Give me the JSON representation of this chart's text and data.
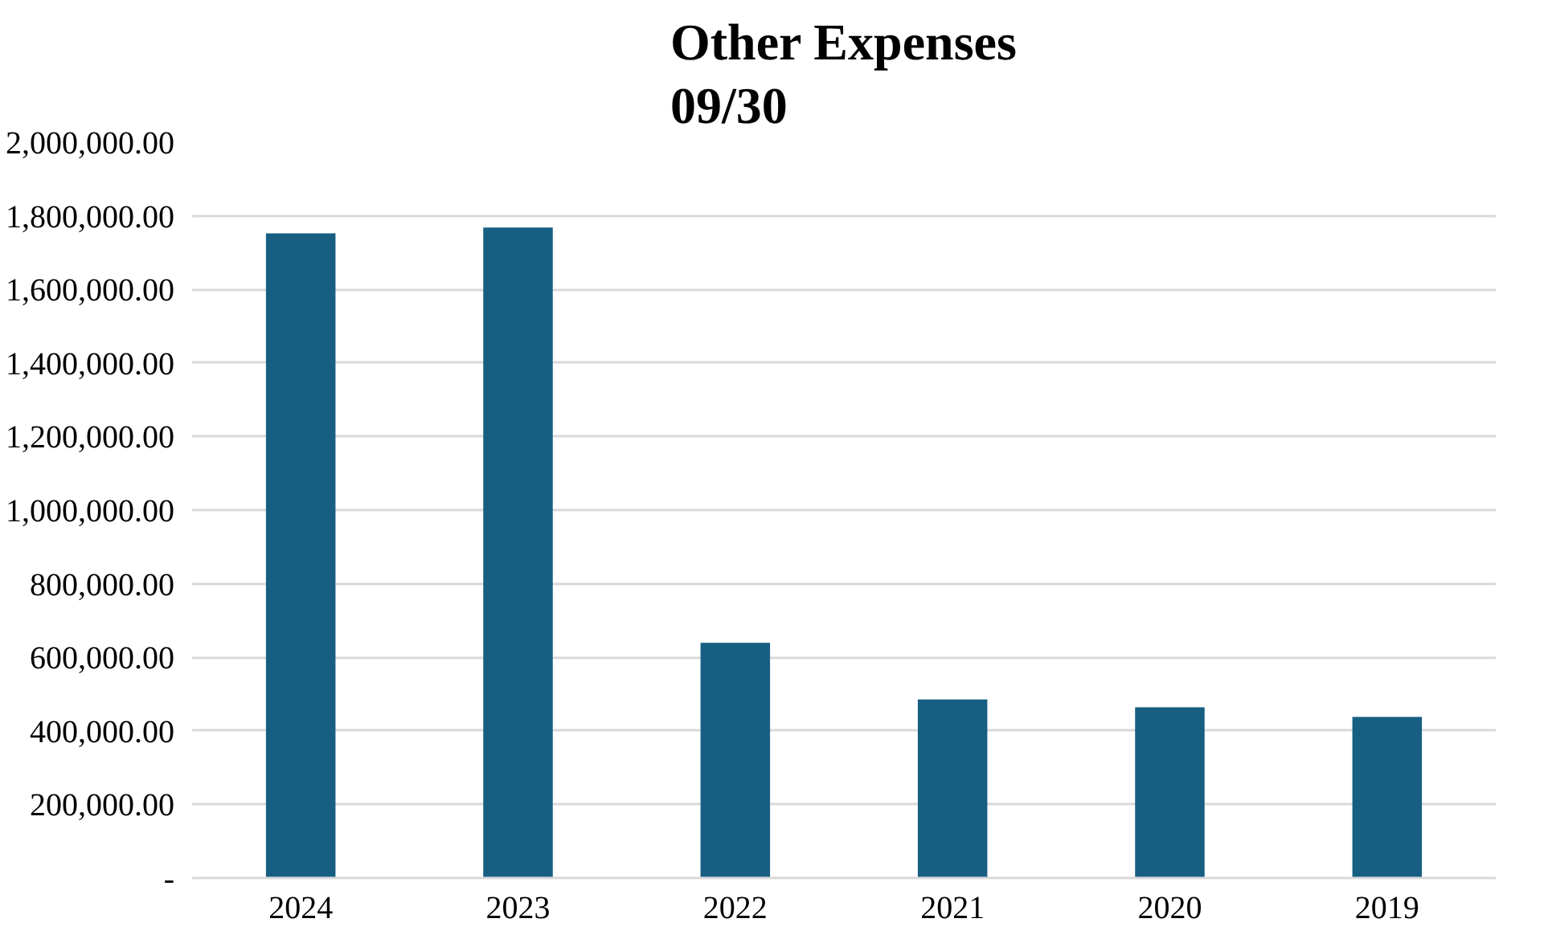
{
  "chart_data": {
    "type": "bar",
    "title": "Other Expenses\n09/30",
    "categories": [
      "2024",
      "2023",
      "2022",
      "2021",
      "2020",
      "2019"
    ],
    "values": [
      1752000,
      1768000,
      639000,
      485000,
      464000,
      438000
    ],
    "color": "#175f82",
    "ylim": [
      0,
      2000000
    ],
    "yticks": [
      {
        "value": 0,
        "label": "-"
      },
      {
        "value": 200000,
        "label": "200,000.00"
      },
      {
        "value": 400000,
        "label": "400,000.00"
      },
      {
        "value": 600000,
        "label": "600,000.00"
      },
      {
        "value": 800000,
        "label": "800,000.00"
      },
      {
        "value": 1000000,
        "label": "1,000,000.00"
      },
      {
        "value": 1200000,
        "label": "1,200,000.00"
      },
      {
        "value": 1400000,
        "label": "1,400,000.00"
      },
      {
        "value": 1600000,
        "label": "1,600,000.00"
      },
      {
        "value": 1800000,
        "label": "1,800,000.00"
      },
      {
        "value": 2000000,
        "label": "2,000,000.00"
      }
    ],
    "grid": "y"
  }
}
